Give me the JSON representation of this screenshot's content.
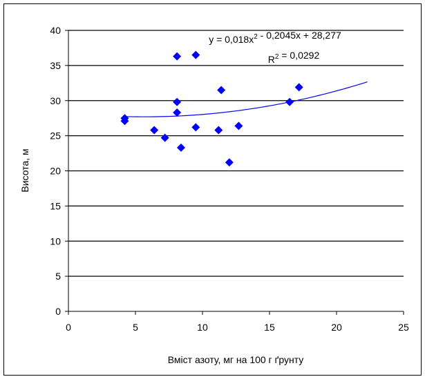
{
  "chart_data": {
    "type": "scatter",
    "xlabel": "Вміст азоту, мг на 100 г ґрунту",
    "ylabel": "Висота, м",
    "xlim": [
      0,
      25
    ],
    "ylim": [
      0,
      40
    ],
    "x_ticks": [
      0,
      5,
      10,
      15,
      20,
      25
    ],
    "y_ticks": [
      0,
      5,
      10,
      15,
      20,
      25,
      30,
      35,
      40
    ],
    "grid": "horizontal",
    "marker_color": "#0000ff",
    "trendline_color": "#0000ff",
    "series": [
      {
        "points": [
          {
            "x": 4.2,
            "y": 27.5
          },
          {
            "x": 4.2,
            "y": 27.1
          },
          {
            "x": 6.4,
            "y": 25.8
          },
          {
            "x": 7.2,
            "y": 24.7
          },
          {
            "x": 8.1,
            "y": 36.3
          },
          {
            "x": 8.1,
            "y": 29.8
          },
          {
            "x": 8.1,
            "y": 28.3
          },
          {
            "x": 8.4,
            "y": 23.3
          },
          {
            "x": 9.5,
            "y": 36.5
          },
          {
            "x": 9.5,
            "y": 26.2
          },
          {
            "x": 11.2,
            "y": 25.8
          },
          {
            "x": 11.4,
            "y": 31.5
          },
          {
            "x": 12.0,
            "y": 21.2
          },
          {
            "x": 12.7,
            "y": 26.4
          },
          {
            "x": 16.5,
            "y": 29.8
          },
          {
            "x": 17.2,
            "y": 31.9
          }
        ]
      }
    ],
    "trendline": {
      "type": "polynomial",
      "coefficients": [
        0.018,
        -0.2045,
        28.277
      ],
      "x_range": [
        4.2,
        22.3
      ],
      "equation_label": "y = 0,018x² - 0,2045x + 28,277",
      "r2_label": "R² = 0,0292"
    }
  }
}
